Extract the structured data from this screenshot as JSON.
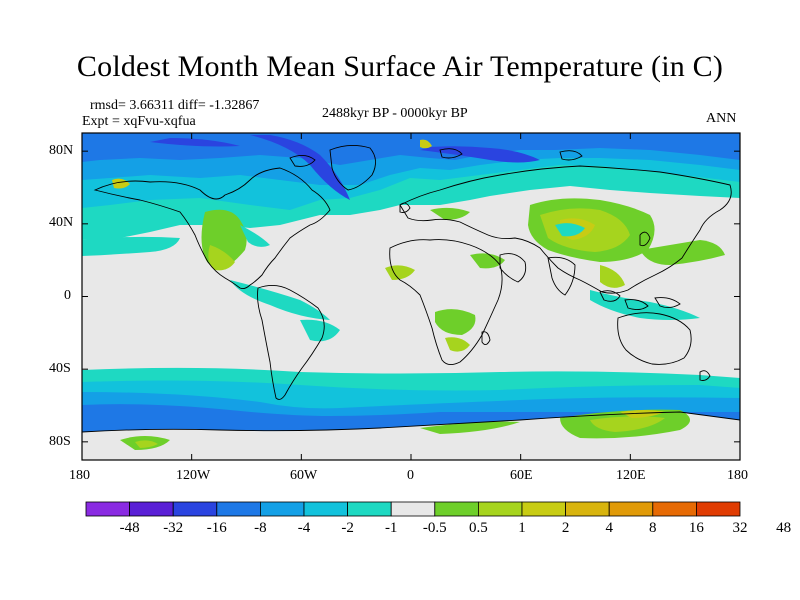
{
  "title": "Coldest Month Mean Surface Air Temperature (in C)",
  "stats": "rmsd= 3.66311 diff= -1.32867",
  "experiment": "Expt = xqFvu-xqfua",
  "period": "2488kyr BP - 0000kyr BP",
  "season": "ANN",
  "lat_ticks": [
    "80N",
    "40N",
    "0",
    "40S",
    "80S"
  ],
  "lon_ticks": [
    "180",
    "120W",
    "60W",
    "0",
    "60E",
    "120E",
    "180"
  ],
  "colorbar": {
    "colors": [
      "#8a2be2",
      "#5a1fd6",
      "#2a44e0",
      "#1e78e6",
      "#14a0e6",
      "#12c2dc",
      "#1ed9c2",
      "#e8e8e8",
      "#6ecf2a",
      "#a6d41e",
      "#c8cc14",
      "#d8b40e",
      "#e09a08",
      "#e66a04",
      "#e03c02"
    ],
    "labels": [
      "-48",
      "-32",
      "-16",
      "-8",
      "-4",
      "-2",
      "-1",
      "-0.5",
      "0.5",
      "1",
      "2",
      "4",
      "8",
      "16",
      "32",
      "48"
    ]
  }
}
